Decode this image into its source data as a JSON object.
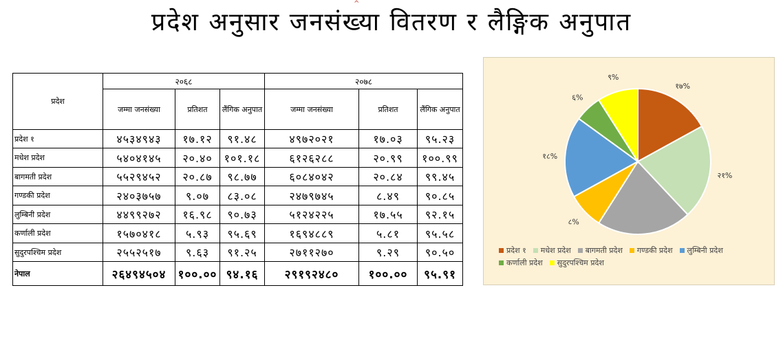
{
  "title": "प्रदेश अनुसार जनसंख्या वितरण र लैङ्गिक अनुपात",
  "table": {
    "province_header": "प्रदेश",
    "year1": "२०६८",
    "year2": "२०७८",
    "col_population": "जम्मा जनसंख्या",
    "col_percent": "प्रतिशत",
    "col_sex_ratio": "लैंगिक अनुपात",
    "rows": [
      {
        "name": "प्रदेश १",
        "pop1": "४५३४९४३",
        "pct1": "१७.१२",
        "sr1": "९१.४८",
        "pop2": "४९७२०२१",
        "pct2": "१७.०३",
        "sr2": "९५.२३"
      },
      {
        "name": "मधेश प्रदेश",
        "pop1": "५४०४१४५",
        "pct1": "२०.४०",
        "sr1": "१०१.१८",
        "pop2": "६१२६२८८",
        "pct2": "२०.९९",
        "sr2": "१००.९९"
      },
      {
        "name": "बागमती प्रदेश",
        "pop1": "५५२९४५२",
        "pct1": "२०.८७",
        "sr1": "९८.७७",
        "pop2": "६०८४०४२",
        "pct2": "२०.८४",
        "sr2": "९९.४५"
      },
      {
        "name": "गण्डकी प्रदेश",
        "pop1": "२४०३७५७",
        "pct1": "९.०७",
        "sr1": "८३.०८",
        "pop2": "२४७९७४५",
        "pct2": "८.४९",
        "sr2": "९०.८५"
      },
      {
        "name": "लुम्बिनी प्रदेश",
        "pop1": "४४९९२७२",
        "pct1": "१६.९८",
        "sr1": "९०.७३",
        "pop2": "५१२४२२५",
        "pct2": "१७.५५",
        "sr2": "९२.१५"
      },
      {
        "name": "कर्णाली प्रदेश",
        "pop1": "१५७०४१८",
        "pct1": "५.९३",
        "sr1": "९५.६९",
        "pop2": "१६९४८८९",
        "pct2": "५.८१",
        "sr2": "९५.५८"
      },
      {
        "name": "सुदुरपश्चिम प्रदेश",
        "pop1": "२५५२५१७",
        "pct1": "९.६३",
        "sr1": "९१.२५",
        "pop2": "२७११२७०",
        "pct2": "९.२९",
        "sr2": "९०.५०"
      }
    ],
    "total": {
      "name": "नेपाल",
      "pop1": "२६४९४५०४",
      "pct1": "१००.००",
      "sr1": "९४.१६",
      "pop2": "२९१९२४८०",
      "pct2": "१००.००",
      "sr2": "९५.९१"
    }
  },
  "chart_data": {
    "type": "pie",
    "categories": [
      "प्रदेश १",
      "मधेश प्रदेश",
      "बागमती प्रदेश",
      "गण्डकी प्रदेश",
      "लुम्बिनी प्रदेश",
      "कर्णाली प्रदेश",
      "सुदुरपश्चिम प्रदेश"
    ],
    "values": [
      17,
      21,
      21,
      8,
      18,
      6,
      9
    ],
    "data_labels": [
      "१७%",
      "२१%",
      "२१%",
      "८%",
      "१८%",
      "६%",
      "९%"
    ],
    "colors": [
      "#c55a11",
      "#c5e0b4",
      "#a5a5a5",
      "#ffc000",
      "#5b9bd5",
      "#70ad47",
      "#ffff00"
    ],
    "legend_position": "bottom"
  }
}
